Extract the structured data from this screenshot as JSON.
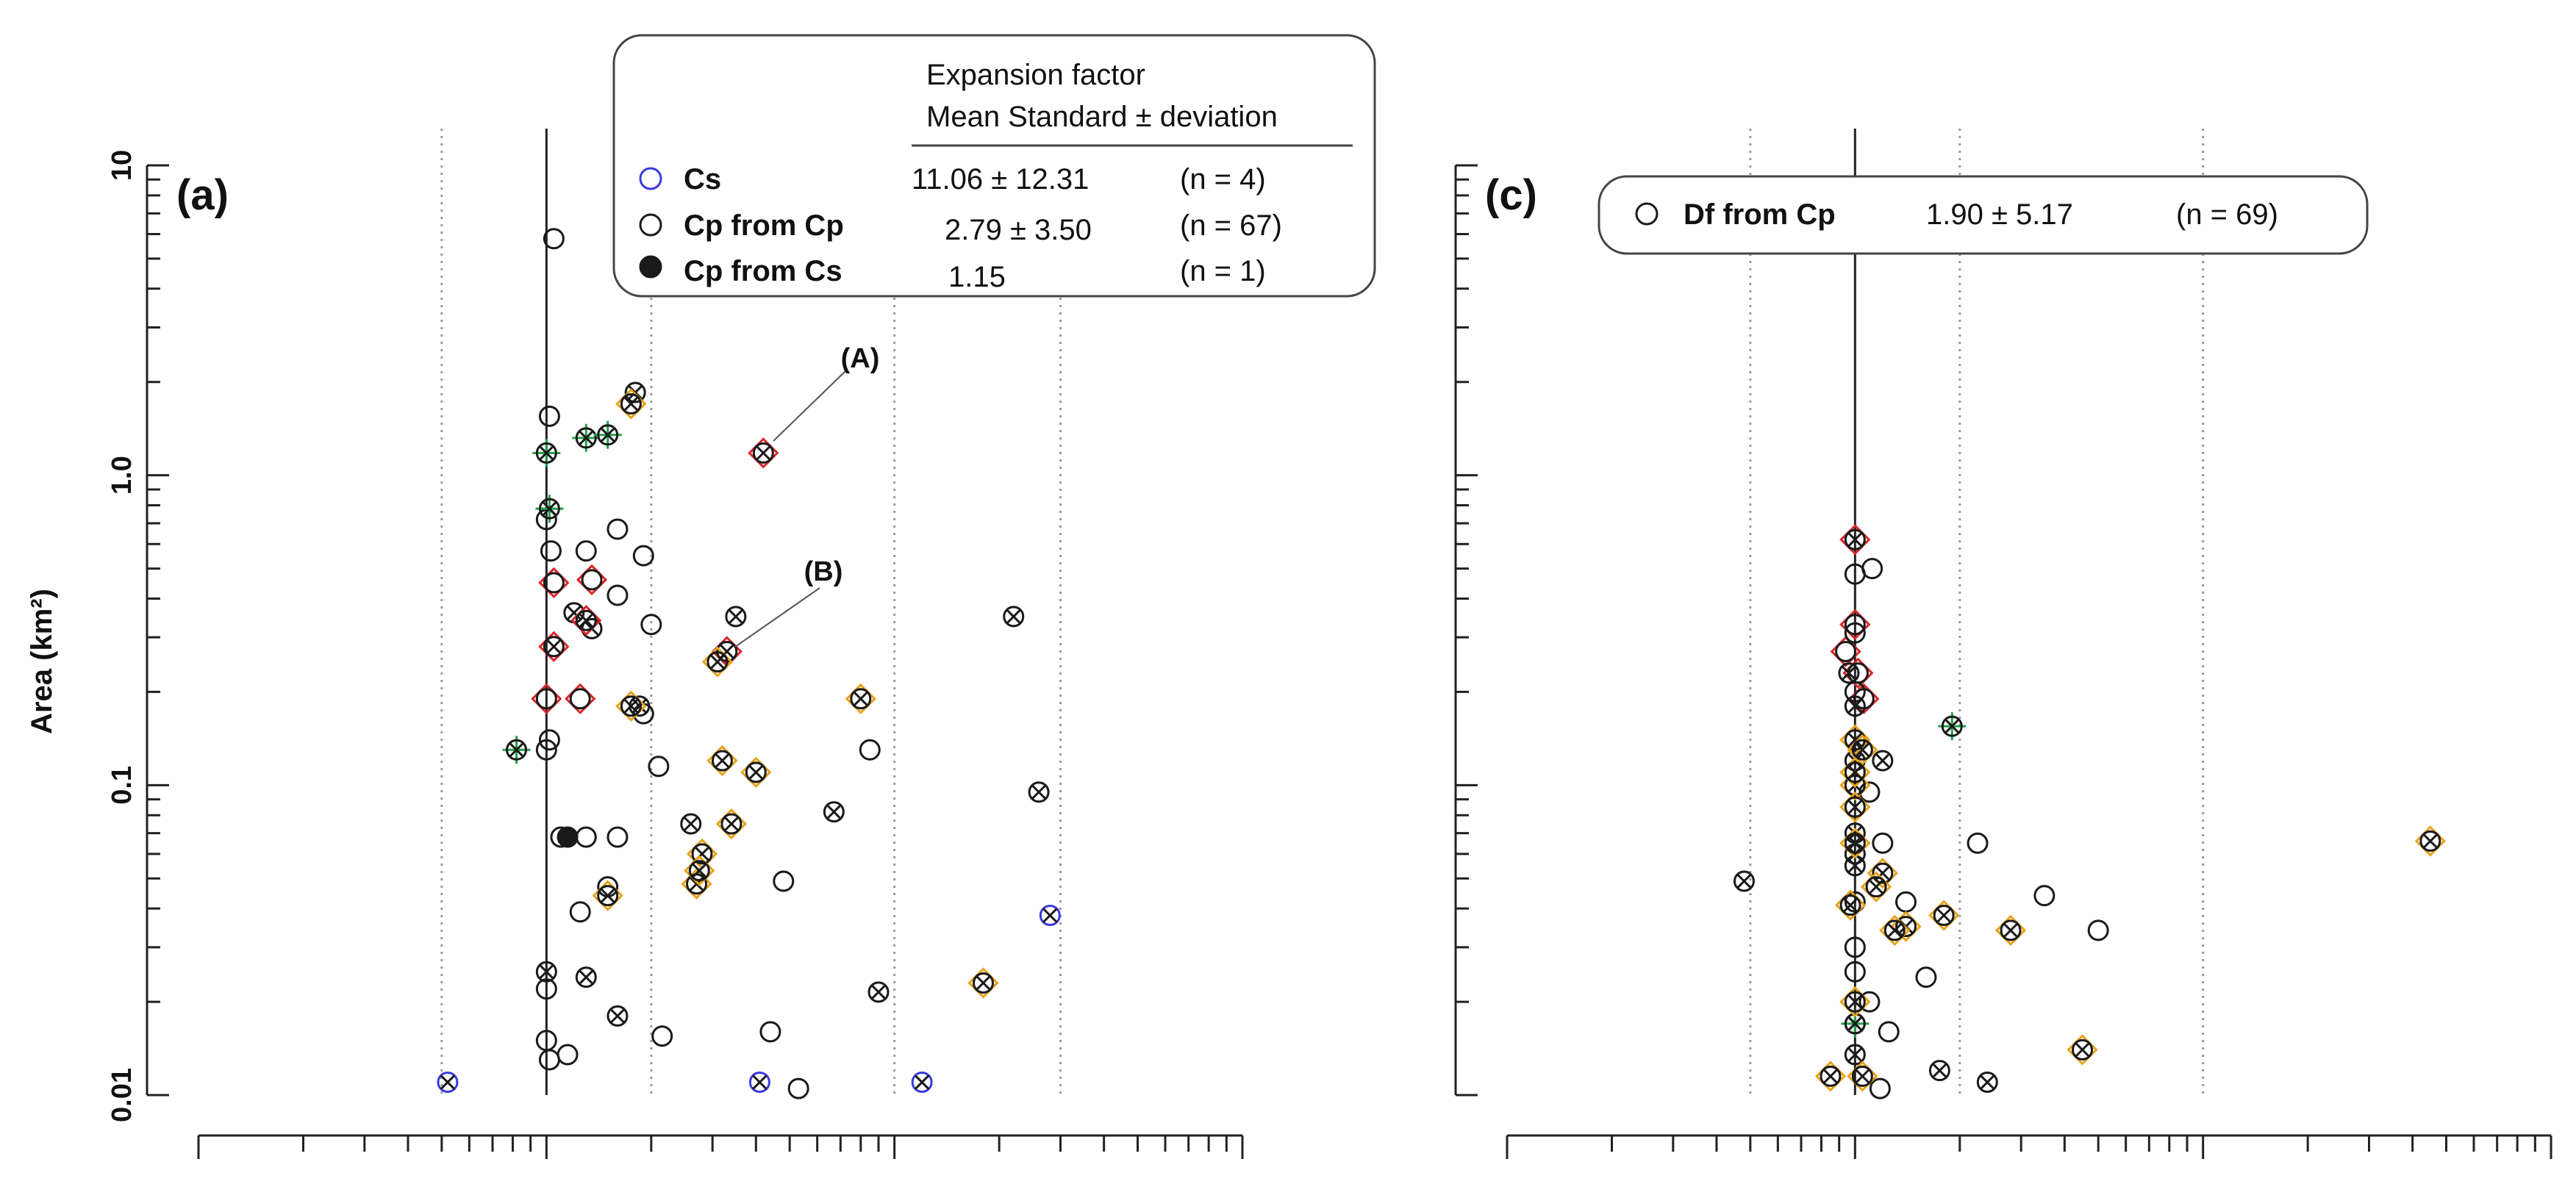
{
  "chart_data": [
    {
      "panel": "(a)",
      "type": "scatter",
      "ylabel": "Area (km²)",
      "yscale": "log",
      "ylim": [
        0.01,
        10
      ],
      "ytick_labels": [
        "0.01",
        "0.1",
        "1.0",
        "10"
      ],
      "ytick_values": [
        0.01,
        0.1,
        1.0,
        10
      ],
      "xscale": "log",
      "xlim": [
        0.1,
        100
      ],
      "xtick_labels": [],
      "reference_lines": {
        "solid": [
          1
        ],
        "dotted": [
          0.5,
          2,
          10,
          30
        ]
      },
      "legend": {
        "header": [
          "Expansion factor",
          "Mean Standard ± deviation"
        ],
        "entries": [
          {
            "symbol": "open-blue-circle",
            "label": "Cs",
            "stat": "11.06 ± 12.31",
            "n": "(n =   4)"
          },
          {
            "symbol": "open-black-circle",
            "label": "Cp from Cp",
            "stat": "2.79 ±  3.50",
            "n": "(n = 67)"
          },
          {
            "symbol": "filled-black-circle",
            "label": "Cp from Cs",
            "stat": "1.15",
            "n": "(n =   1)"
          }
        ]
      },
      "annotations": [
        {
          "label": "(A)",
          "x": 4.2,
          "y": 1.18
        },
        {
          "label": "(B)",
          "x": 3.3,
          "y": 0.27
        }
      ],
      "points": [
        {
          "x": 0.52,
          "y": 0.011,
          "m": "blue"
        },
        {
          "x": 4.1,
          "y": 0.011,
          "m": "blue"
        },
        {
          "x": 12.0,
          "y": 0.011,
          "m": "blue"
        },
        {
          "x": 28.0,
          "y": 0.038,
          "m": "blue"
        },
        {
          "x": 1.15,
          "y": 0.068,
          "m": "filled"
        },
        {
          "x": 1.05,
          "y": 5.8,
          "m": "o"
        },
        {
          "x": 1.02,
          "y": 1.55,
          "m": "o"
        },
        {
          "x": 1.0,
          "y": 0.72,
          "m": "o"
        },
        {
          "x": 1.03,
          "y": 0.57,
          "m": "o"
        },
        {
          "x": 1.3,
          "y": 0.57,
          "m": "o"
        },
        {
          "x": 1.6,
          "y": 0.67,
          "m": "o"
        },
        {
          "x": 1.9,
          "y": 0.55,
          "m": "o"
        },
        {
          "x": 1.6,
          "y": 0.41,
          "m": "o"
        },
        {
          "x": 2.0,
          "y": 0.33,
          "m": "o"
        },
        {
          "x": 1.02,
          "y": 0.14,
          "m": "o"
        },
        {
          "x": 1.0,
          "y": 0.13,
          "m": "o"
        },
        {
          "x": 1.9,
          "y": 0.17,
          "m": "o"
        },
        {
          "x": 2.1,
          "y": 0.115,
          "m": "o"
        },
        {
          "x": 1.1,
          "y": 0.068,
          "m": "o"
        },
        {
          "x": 1.3,
          "y": 0.068,
          "m": "o"
        },
        {
          "x": 1.6,
          "y": 0.068,
          "m": "o"
        },
        {
          "x": 1.5,
          "y": 0.047,
          "m": "o"
        },
        {
          "x": 1.25,
          "y": 0.039,
          "m": "o"
        },
        {
          "x": 4.8,
          "y": 0.049,
          "m": "o"
        },
        {
          "x": 8.5,
          "y": 0.13,
          "m": "o"
        },
        {
          "x": 1.0,
          "y": 0.022,
          "m": "o"
        },
        {
          "x": 1.0,
          "y": 0.015,
          "m": "o"
        },
        {
          "x": 1.02,
          "y": 0.013,
          "m": "o"
        },
        {
          "x": 1.15,
          "y": 0.0135,
          "m": "o"
        },
        {
          "x": 2.15,
          "y": 0.0155,
          "m": "o"
        },
        {
          "x": 4.4,
          "y": 0.016,
          "m": "o"
        },
        {
          "x": 5.3,
          "y": 0.0105,
          "m": "o"
        },
        {
          "x": 1.8,
          "y": 1.85,
          "m": "x"
        },
        {
          "x": 1.35,
          "y": 0.32,
          "m": "x"
        },
        {
          "x": 1.2,
          "y": 0.36,
          "m": "x"
        },
        {
          "x": 3.5,
          "y": 0.35,
          "m": "x"
        },
        {
          "x": 1.85,
          "y": 0.18,
          "m": "x"
        },
        {
          "x": 2.6,
          "y": 0.075,
          "m": "x"
        },
        {
          "x": 6.7,
          "y": 0.082,
          "m": "x"
        },
        {
          "x": 22.0,
          "y": 0.35,
          "m": "x"
        },
        {
          "x": 26.0,
          "y": 0.095,
          "m": "x"
        },
        {
          "x": 1.0,
          "y": 0.025,
          "m": "x"
        },
        {
          "x": 1.3,
          "y": 0.024,
          "m": "x"
        },
        {
          "x": 1.6,
          "y": 0.018,
          "m": "x"
        },
        {
          "x": 9.0,
          "y": 0.0215,
          "m": "x"
        },
        {
          "x": 1.0,
          "y": 1.18,
          "m": "gx"
        },
        {
          "x": 1.3,
          "y": 1.32,
          "m": "gx"
        },
        {
          "x": 1.5,
          "y": 1.35,
          "m": "gx"
        },
        {
          "x": 1.02,
          "y": 0.78,
          "m": "gx"
        },
        {
          "x": 0.82,
          "y": 0.13,
          "m": "gx"
        },
        {
          "x": 4.2,
          "y": 1.18,
          "m": "rx"
        },
        {
          "x": 1.05,
          "y": 0.28,
          "m": "rx"
        },
        {
          "x": 3.3,
          "y": 0.27,
          "m": "rx"
        },
        {
          "x": 1.3,
          "y": 0.34,
          "m": "rx"
        },
        {
          "x": 1.05,
          "y": 0.45,
          "m": "rd"
        },
        {
          "x": 1.35,
          "y": 0.46,
          "m": "rd"
        },
        {
          "x": 1.0,
          "y": 0.19,
          "m": "rd"
        },
        {
          "x": 1.25,
          "y": 0.19,
          "m": "rd"
        },
        {
          "x": 1.75,
          "y": 1.7,
          "m": "ox"
        },
        {
          "x": 3.1,
          "y": 0.25,
          "m": "ox"
        },
        {
          "x": 1.75,
          "y": 0.18,
          "m": "ox"
        },
        {
          "x": 3.2,
          "y": 0.12,
          "m": "ox"
        },
        {
          "x": 4.0,
          "y": 0.11,
          "m": "ox"
        },
        {
          "x": 8.0,
          "y": 0.19,
          "m": "ox"
        },
        {
          "x": 3.4,
          "y": 0.075,
          "m": "ox"
        },
        {
          "x": 2.8,
          "y": 0.06,
          "m": "ox"
        },
        {
          "x": 2.7,
          "y": 0.048,
          "m": "ox"
        },
        {
          "x": 1.5,
          "y": 0.044,
          "m": "ox"
        },
        {
          "x": 18.0,
          "y": 0.023,
          "m": "ox"
        },
        {
          "x": 2.75,
          "y": 0.053,
          "m": "ox"
        }
      ]
    },
    {
      "panel": "(c)",
      "type": "scatter",
      "yscale": "log",
      "ylim": [
        0.01,
        10
      ],
      "xscale": "log",
      "xlim": [
        0.1,
        100
      ],
      "xtick_labels": [],
      "reference_lines": {
        "solid": [
          1
        ],
        "dotted": [
          0.5,
          2,
          10
        ]
      },
      "legend": {
        "entries": [
          {
            "symbol": "open-black-circle",
            "label": "Df from Cp",
            "stat": "1.90 ± 5.17",
            "n": "(n = 69)"
          }
        ]
      },
      "points": [
        {
          "x": 1.0,
          "y": 0.62,
          "m": "rx"
        },
        {
          "x": 1.0,
          "y": 0.33,
          "m": "rd"
        },
        {
          "x": 0.94,
          "y": 0.27,
          "m": "rd"
        },
        {
          "x": 1.06,
          "y": 0.19,
          "m": "rd"
        },
        {
          "x": 1.02,
          "y": 0.23,
          "m": "rd"
        },
        {
          "x": 1.0,
          "y": 0.48,
          "m": "o"
        },
        {
          "x": 1.12,
          "y": 0.5,
          "m": "o"
        },
        {
          "x": 1.0,
          "y": 0.31,
          "m": "o"
        },
        {
          "x": 1.0,
          "y": 0.2,
          "m": "o"
        },
        {
          "x": 1.1,
          "y": 0.095,
          "m": "o"
        },
        {
          "x": 1.2,
          "y": 0.065,
          "m": "o"
        },
        {
          "x": 2.25,
          "y": 0.065,
          "m": "o"
        },
        {
          "x": 3.5,
          "y": 0.044,
          "m": "o"
        },
        {
          "x": 5.0,
          "y": 0.034,
          "m": "o"
        },
        {
          "x": 1.0,
          "y": 0.042,
          "m": "o"
        },
        {
          "x": 1.0,
          "y": 0.03,
          "m": "o"
        },
        {
          "x": 1.0,
          "y": 0.025,
          "m": "o"
        },
        {
          "x": 1.1,
          "y": 0.02,
          "m": "o"
        },
        {
          "x": 1.25,
          "y": 0.016,
          "m": "o"
        },
        {
          "x": 1.6,
          "y": 0.024,
          "m": "o"
        },
        {
          "x": 1.4,
          "y": 0.042,
          "m": "o"
        },
        {
          "x": 1.18,
          "y": 0.0105,
          "m": "o"
        },
        {
          "x": 0.96,
          "y": 0.23,
          "m": "x"
        },
        {
          "x": 1.0,
          "y": 0.18,
          "m": "x"
        },
        {
          "x": 1.0,
          "y": 0.12,
          "m": "x"
        },
        {
          "x": 1.2,
          "y": 0.12,
          "m": "x"
        },
        {
          "x": 1.0,
          "y": 0.07,
          "m": "x"
        },
        {
          "x": 1.0,
          "y": 0.06,
          "m": "x"
        },
        {
          "x": 1.0,
          "y": 0.055,
          "m": "x"
        },
        {
          "x": 0.48,
          "y": 0.049,
          "m": "x"
        },
        {
          "x": 1.0,
          "y": 0.017,
          "m": "x"
        },
        {
          "x": 1.0,
          "y": 0.0135,
          "m": "x"
        },
        {
          "x": 1.75,
          "y": 0.012,
          "m": "x"
        },
        {
          "x": 2.4,
          "y": 0.011,
          "m": "x"
        },
        {
          "x": 1.9,
          "y": 0.155,
          "m": "gx"
        },
        {
          "x": 1.0,
          "y": 0.017,
          "m": "gx"
        },
        {
          "x": 1.0,
          "y": 0.14,
          "m": "ox"
        },
        {
          "x": 1.05,
          "y": 0.13,
          "m": "ox"
        },
        {
          "x": 1.0,
          "y": 0.1,
          "m": "ox"
        },
        {
          "x": 1.0,
          "y": 0.085,
          "m": "ox"
        },
        {
          "x": 1.0,
          "y": 0.065,
          "m": "ox"
        },
        {
          "x": 1.2,
          "y": 0.052,
          "m": "ox"
        },
        {
          "x": 1.15,
          "y": 0.047,
          "m": "ox"
        },
        {
          "x": 1.4,
          "y": 0.035,
          "m": "ox"
        },
        {
          "x": 1.8,
          "y": 0.038,
          "m": "ox"
        },
        {
          "x": 2.8,
          "y": 0.034,
          "m": "ox"
        },
        {
          "x": 4.5,
          "y": 0.014,
          "m": "ox"
        },
        {
          "x": 0.85,
          "y": 0.0115,
          "m": "ox"
        },
        {
          "x": 1.05,
          "y": 0.0115,
          "m": "ox"
        },
        {
          "x": 1.0,
          "y": 0.02,
          "m": "ox"
        },
        {
          "x": 1.0,
          "y": 0.11,
          "m": "ox"
        },
        {
          "x": 1.3,
          "y": 0.034,
          "m": "ox"
        },
        {
          "x": 45.0,
          "y": 0.066,
          "m": "ox"
        },
        {
          "x": 0.97,
          "y": 0.041,
          "m": "ox"
        }
      ]
    }
  ],
  "colors": {
    "blue": "#3a3adf",
    "black": "#1a1a1a",
    "green": "#1fa14a",
    "red": "#d9262a",
    "orange": "#e8a21a",
    "grid": "#9a9a9a"
  }
}
